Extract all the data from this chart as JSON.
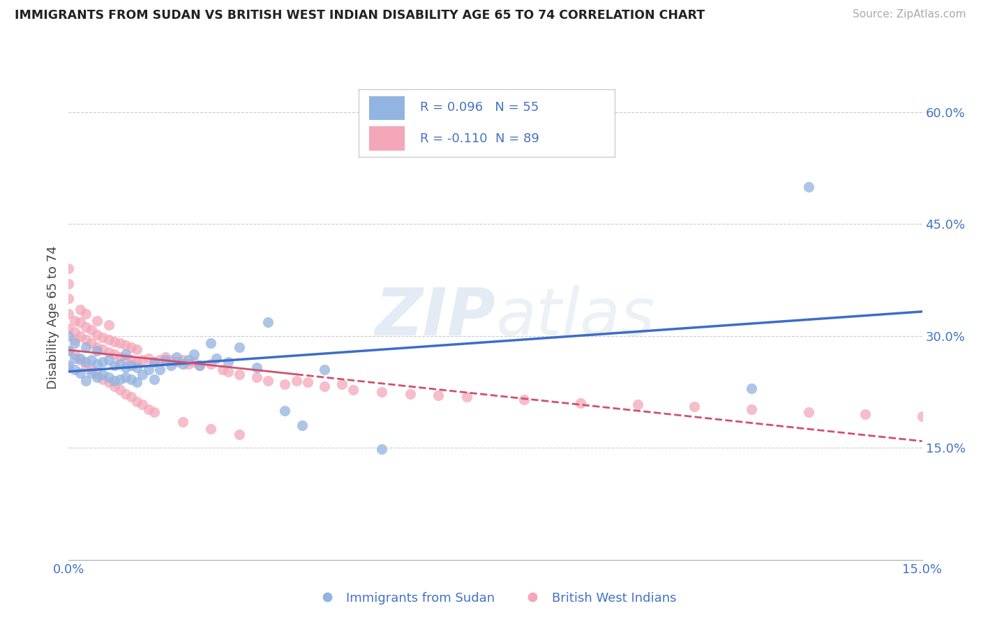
{
  "title": "IMMIGRANTS FROM SUDAN VS BRITISH WEST INDIAN DISABILITY AGE 65 TO 74 CORRELATION CHART",
  "source": "Source: ZipAtlas.com",
  "ylabel": "Disability Age 65 to 74",
  "xlim": [
    0.0,
    0.15
  ],
  "ylim": [
    0.0,
    0.65
  ],
  "ytick_vals_right": [
    0.15,
    0.3,
    0.45,
    0.6
  ],
  "color_blue": "#92b4e0",
  "color_pink": "#f4a7b9",
  "color_blue_line": "#3c6dc8",
  "color_pink_line": "#d05070",
  "color_text": "#4472c4",
  "watermark_zip": "ZIP",
  "watermark_atlas": "atlas",
  "sudan_x": [
    0.0,
    0.0,
    0.0,
    0.001,
    0.001,
    0.001,
    0.002,
    0.002,
    0.003,
    0.003,
    0.003,
    0.004,
    0.004,
    0.005,
    0.005,
    0.005,
    0.006,
    0.006,
    0.007,
    0.007,
    0.008,
    0.008,
    0.009,
    0.009,
    0.01,
    0.01,
    0.01,
    0.011,
    0.011,
    0.012,
    0.012,
    0.013,
    0.014,
    0.015,
    0.015,
    0.016,
    0.017,
    0.018,
    0.019,
    0.02,
    0.021,
    0.022,
    0.023,
    0.025,
    0.026,
    0.028,
    0.03,
    0.033,
    0.035,
    0.038,
    0.041,
    0.045,
    0.055,
    0.12,
    0.13
  ],
  "sudan_y": [
    0.26,
    0.28,
    0.3,
    0.255,
    0.27,
    0.29,
    0.25,
    0.27,
    0.24,
    0.265,
    0.285,
    0.25,
    0.268,
    0.245,
    0.262,
    0.28,
    0.248,
    0.265,
    0.245,
    0.268,
    0.24,
    0.26,
    0.242,
    0.262,
    0.245,
    0.258,
    0.275,
    0.242,
    0.26,
    0.238,
    0.258,
    0.248,
    0.255,
    0.242,
    0.265,
    0.255,
    0.268,
    0.26,
    0.272,
    0.262,
    0.268,
    0.275,
    0.26,
    0.29,
    0.27,
    0.265,
    0.285,
    0.258,
    0.318,
    0.2,
    0.18,
    0.255,
    0.148,
    0.23,
    0.5
  ],
  "bwi_x": [
    0.0,
    0.0,
    0.0,
    0.0,
    0.0,
    0.0,
    0.001,
    0.001,
    0.001,
    0.002,
    0.002,
    0.002,
    0.003,
    0.003,
    0.003,
    0.004,
    0.004,
    0.005,
    0.005,
    0.005,
    0.006,
    0.006,
    0.007,
    0.007,
    0.007,
    0.008,
    0.008,
    0.009,
    0.009,
    0.01,
    0.01,
    0.011,
    0.011,
    0.012,
    0.012,
    0.013,
    0.014,
    0.015,
    0.016,
    0.017,
    0.018,
    0.019,
    0.02,
    0.021,
    0.022,
    0.023,
    0.025,
    0.027,
    0.028,
    0.03,
    0.033,
    0.035,
    0.038,
    0.04,
    0.042,
    0.045,
    0.048,
    0.05,
    0.055,
    0.06,
    0.065,
    0.07,
    0.08,
    0.09,
    0.1,
    0.11,
    0.12,
    0.13,
    0.14,
    0.15,
    0.0,
    0.001,
    0.002,
    0.003,
    0.004,
    0.005,
    0.006,
    0.007,
    0.008,
    0.009,
    0.01,
    0.011,
    0.012,
    0.013,
    0.014,
    0.015,
    0.02,
    0.025,
    0.03
  ],
  "bwi_y": [
    0.31,
    0.33,
    0.35,
    0.37,
    0.39,
    0.28,
    0.305,
    0.32,
    0.295,
    0.3,
    0.318,
    0.335,
    0.295,
    0.312,
    0.33,
    0.29,
    0.308,
    0.285,
    0.302,
    0.32,
    0.282,
    0.298,
    0.278,
    0.295,
    0.315,
    0.275,
    0.292,
    0.272,
    0.29,
    0.27,
    0.288,
    0.268,
    0.285,
    0.265,
    0.282,
    0.268,
    0.27,
    0.265,
    0.268,
    0.272,
    0.268,
    0.265,
    0.268,
    0.262,
    0.265,
    0.26,
    0.262,
    0.255,
    0.252,
    0.248,
    0.245,
    0.24,
    0.235,
    0.24,
    0.238,
    0.232,
    0.235,
    0.228,
    0.225,
    0.222,
    0.22,
    0.218,
    0.215,
    0.21,
    0.208,
    0.205,
    0.202,
    0.198,
    0.195,
    0.192,
    0.258,
    0.275,
    0.268,
    0.26,
    0.255,
    0.248,
    0.242,
    0.238,
    0.232,
    0.228,
    0.222,
    0.218,
    0.212,
    0.208,
    0.202,
    0.198,
    0.185,
    0.175,
    0.168
  ]
}
